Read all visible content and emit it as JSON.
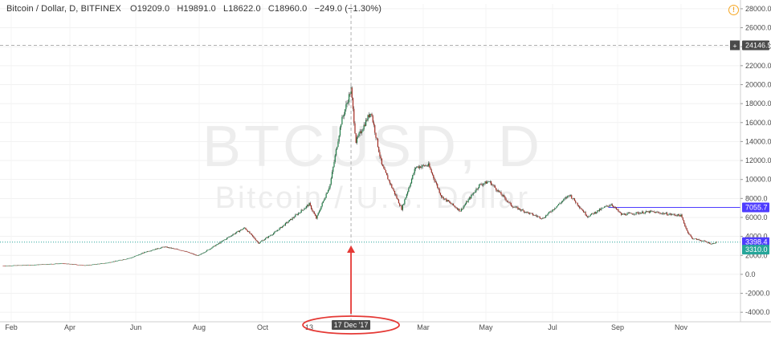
{
  "legend": {
    "symbol": "Bitcoin / Dollar, D, BITFINEX",
    "open": "O19209.0",
    "high": "H19891.0",
    "low": "L18622.0",
    "close": "C18960.0",
    "change": "−249.0 (−1.30%)"
  },
  "watermark": {
    "ticker": "BTCUSD, D",
    "name": "Bitcoin / U.S. Dollar"
  },
  "crosshair": {
    "price_label": "24146.5",
    "date_label": "17 Dec '17",
    "plus": "+"
  },
  "price_labels": {
    "resistance": "7055.7",
    "last": "3398.4",
    "support": "3310.0"
  },
  "colors": {
    "up": "#26a69a",
    "down": "#ef5350",
    "candle_up_body": "#1b7a43",
    "candle_down_body": "#a32a20",
    "resistance_line": "#4e3cff",
    "arrow": "#e53935"
  },
  "chart_data": {
    "type": "candlestick",
    "y_ticks": [
      "28000.0",
      "26000.0",
      "24000.0",
      "22000.0",
      "20000.0",
      "18000.0",
      "16000.0",
      "14000.0",
      "12000.0",
      "10000.0",
      "8000.0",
      "6000.0",
      "4000.0",
      "2000.0",
      "0.0",
      "-2000.0",
      "-4000.0"
    ],
    "ylim": [
      -5000,
      28500
    ],
    "x_ticks": [
      "Feb",
      "Apr",
      "Jun",
      "Aug",
      "Oct",
      "13",
      "18",
      "Mar",
      "May",
      "Jul",
      "Sep",
      "Nov"
    ],
    "x_range": [
      "2017-01-01",
      "2018-12-31"
    ],
    "series": [
      {
        "date": "2017-01-01",
        "price": 900
      },
      {
        "date": "2017-02-01",
        "price": 1000
      },
      {
        "date": "2017-03-01",
        "price": 1150
      },
      {
        "date": "2017-03-25",
        "price": 950
      },
      {
        "date": "2017-04-15",
        "price": 1200
      },
      {
        "date": "2017-05-10",
        "price": 1750
      },
      {
        "date": "2017-05-25",
        "price": 2400
      },
      {
        "date": "2017-06-12",
        "price": 2900
      },
      {
        "date": "2017-07-01",
        "price": 2500
      },
      {
        "date": "2017-07-16",
        "price": 1950
      },
      {
        "date": "2017-08-05",
        "price": 3200
      },
      {
        "date": "2017-08-20",
        "price": 4200
      },
      {
        "date": "2017-09-01",
        "price": 4900
      },
      {
        "date": "2017-09-15",
        "price": 3300
      },
      {
        "date": "2017-10-01",
        "price": 4400
      },
      {
        "date": "2017-10-20",
        "price": 6000
      },
      {
        "date": "2017-11-05",
        "price": 7400
      },
      {
        "date": "2017-11-12",
        "price": 5900
      },
      {
        "date": "2017-11-26",
        "price": 9500
      },
      {
        "date": "2017-12-07",
        "price": 16000
      },
      {
        "date": "2017-12-17",
        "price": 19500
      },
      {
        "date": "2017-12-22",
        "price": 14000
      },
      {
        "date": "2018-01-06",
        "price": 17200
      },
      {
        "date": "2018-01-17",
        "price": 11500
      },
      {
        "date": "2018-02-06",
        "price": 6900
      },
      {
        "date": "2018-02-20",
        "price": 11300
      },
      {
        "date": "2018-03-05",
        "price": 11500
      },
      {
        "date": "2018-03-18",
        "price": 8200
      },
      {
        "date": "2018-04-06",
        "price": 6700
      },
      {
        "date": "2018-04-25",
        "price": 9400
      },
      {
        "date": "2018-05-05",
        "price": 9800
      },
      {
        "date": "2018-05-28",
        "price": 7200
      },
      {
        "date": "2018-06-15",
        "price": 6400
      },
      {
        "date": "2018-06-28",
        "price": 5900
      },
      {
        "date": "2018-07-25",
        "price": 8400
      },
      {
        "date": "2018-08-12",
        "price": 6100
      },
      {
        "date": "2018-08-28",
        "price": 7000
      },
      {
        "date": "2018-09-05",
        "price": 7400
      },
      {
        "date": "2018-09-15",
        "price": 6300
      },
      {
        "date": "2018-10-15",
        "price": 6600
      },
      {
        "date": "2018-11-01",
        "price": 6350
      },
      {
        "date": "2018-11-14",
        "price": 6200
      },
      {
        "date": "2018-11-20",
        "price": 4600
      },
      {
        "date": "2018-11-25",
        "price": 3800
      },
      {
        "date": "2018-12-07",
        "price": 3500
      },
      {
        "date": "2018-12-15",
        "price": 3200
      },
      {
        "date": "2018-12-20",
        "price": 3400
      }
    ],
    "horizontal_lines": [
      {
        "price": 24146.5,
        "style": "dashed",
        "role": "crosshair"
      },
      {
        "price": 7055.7,
        "style": "solid",
        "role": "resistance"
      },
      {
        "price": 3398.4,
        "style": "dotted",
        "role": "last-price"
      }
    ],
    "crosshair_date": "2017-12-17",
    "grid": true
  }
}
